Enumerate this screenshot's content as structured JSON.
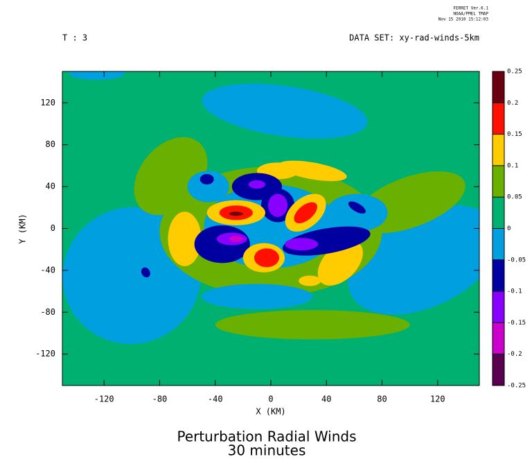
{
  "chart_data": {
    "type": "contour",
    "program": [
      "FERRET Ver.6.1",
      "NOAA/PMEL TMAP",
      "Nov 15 2010 15:12:03"
    ],
    "time_label": "T : 3",
    "dataset": "DATA SET: xy-rad-winds-5km",
    "title": "Perturbation Radial Winds",
    "subtitle": "30 minutes",
    "xlabel": "X (KM)",
    "ylabel": "Y (KM)",
    "xlim": [
      -150,
      150
    ],
    "ylim": [
      -150,
      150
    ],
    "xticks": [
      -120,
      -80,
      -40,
      0,
      40,
      80,
      120
    ],
    "yticks": [
      -120,
      -80,
      -40,
      0,
      40,
      80,
      120
    ],
    "colorbar": {
      "levels": [
        -0.25,
        -0.2,
        -0.15,
        -0.1,
        -0.05,
        0,
        0.05,
        0.1,
        0.15,
        0.2,
        0.25
      ],
      "colors": [
        "#5a0050",
        "#cc00cc",
        "#8800ff",
        "#0000a0",
        "#00a0e0",
        "#00b070",
        "#6ab000",
        "#ffcc00",
        "#ff1000",
        "#6a0010"
      ]
    },
    "background_level": 0,
    "regions": [
      {
        "level": -0.05,
        "x": 10,
        "y": 112,
        "rx": 60,
        "ry": 24,
        "rot": -8
      },
      {
        "level": -0.05,
        "x": -125,
        "y": 148,
        "rx": 20,
        "ry": 6,
        "rot": 0
      },
      {
        "level": -0.05,
        "x": -100,
        "y": -45,
        "rx": 50,
        "ry": 65,
        "rot": 30
      },
      {
        "level": -0.05,
        "x": 110,
        "y": -30,
        "rx": 58,
        "ry": 45,
        "rot": 25
      },
      {
        "level": 0.05,
        "x": -72,
        "y": 50,
        "rx": 22,
        "ry": 42,
        "rot": -40
      },
      {
        "level": 0.05,
        "x": 100,
        "y": 25,
        "rx": 42,
        "ry": 24,
        "rot": 20
      },
      {
        "level": 0.05,
        "x": 30,
        "y": -92,
        "rx": 70,
        "ry": 14,
        "rot": 0
      },
      {
        "level": 0.05,
        "x": 0,
        "y": -3,
        "rx": 80,
        "ry": 62,
        "rot": 0
      },
      {
        "level": -0.05,
        "x": -10,
        "y": -65,
        "rx": 40,
        "ry": 12,
        "rot": 0
      },
      {
        "level": -0.05,
        "x": 62,
        "y": 15,
        "rx": 22,
        "ry": 18,
        "rot": 0
      },
      {
        "level": -0.05,
        "x": -45,
        "y": 40,
        "rx": 15,
        "ry": 15,
        "rot": 0
      },
      {
        "level": -0.05,
        "x": 0,
        "y": 2,
        "rx": 48,
        "ry": 40,
        "rot": 0
      },
      {
        "level": 0.1,
        "x": -62,
        "y": -10,
        "rx": 12,
        "ry": 26,
        "rot": 0
      },
      {
        "level": 0.1,
        "x": 30,
        "y": 55,
        "rx": 25,
        "ry": 8,
        "rot": -10
      },
      {
        "level": 0.1,
        "x": 50,
        "y": -33,
        "rx": 12,
        "ry": 26,
        "rot": -45
      },
      {
        "level": 0.1,
        "x": 28,
        "y": -50,
        "rx": 8,
        "ry": 5,
        "rot": 0
      },
      {
        "level": 0.1,
        "x": 5,
        "y": 55,
        "rx": 15,
        "ry": 8,
        "rot": 0
      },
      {
        "level": -0.1,
        "x": -10,
        "y": 40,
        "rx": 18,
        "ry": 13,
        "rot": 0
      },
      {
        "level": -0.1,
        "x": 5,
        "y": 22,
        "rx": 12,
        "ry": 16,
        "rot": 0
      },
      {
        "level": -0.1,
        "x": -35,
        "y": -15,
        "rx": 20,
        "ry": 18,
        "rot": 0
      },
      {
        "level": -0.1,
        "x": 40,
        "y": -12,
        "rx": 32,
        "ry": 12,
        "rot": 10
      },
      {
        "level": -0.1,
        "x": -46,
        "y": 47,
        "rx": 5,
        "ry": 5,
        "rot": 0
      },
      {
        "level": -0.1,
        "x": 62,
        "y": 20,
        "rx": 7,
        "ry": 4,
        "rot": -30
      },
      {
        "level": -0.1,
        "x": -90,
        "y": -42,
        "rx": 3,
        "ry": 5,
        "rot": 30
      },
      {
        "level": -0.15,
        "x": -10,
        "y": 42,
        "rx": 6,
        "ry": 4,
        "rot": 0
      },
      {
        "level": -0.15,
        "x": 5,
        "y": 22,
        "rx": 7,
        "ry": 11,
        "rot": 0
      },
      {
        "level": -0.15,
        "x": -28,
        "y": -10,
        "rx": 11,
        "ry": 6,
        "rot": 0
      },
      {
        "level": -0.15,
        "x": 22,
        "y": -15,
        "rx": 12,
        "ry": 6,
        "rot": 0
      },
      {
        "level": -0.2,
        "x": -25,
        "y": -10,
        "rx": 5,
        "ry": 3,
        "rot": 0
      },
      {
        "level": 0.1,
        "x": -25,
        "y": 15,
        "rx": 21,
        "ry": 12,
        "rot": 0
      },
      {
        "level": 0.1,
        "x": 25,
        "y": 15,
        "rx": 17,
        "ry": 14,
        "rot": 40
      },
      {
        "level": 0.1,
        "x": -5,
        "y": -28,
        "rx": 15,
        "ry": 14,
        "rot": 0
      },
      {
        "level": 0.15,
        "x": -25,
        "y": 15,
        "rx": 12,
        "ry": 7,
        "rot": 0
      },
      {
        "level": 0.15,
        "x": 25,
        "y": 15,
        "rx": 10,
        "ry": 7,
        "rot": 40
      },
      {
        "level": 0.15,
        "x": -3,
        "y": -28,
        "rx": 9,
        "ry": 9,
        "rot": 0
      },
      {
        "level": 0.2,
        "x": -25,
        "y": 14,
        "rx": 5,
        "ry": 2,
        "rot": 0
      }
    ]
  }
}
